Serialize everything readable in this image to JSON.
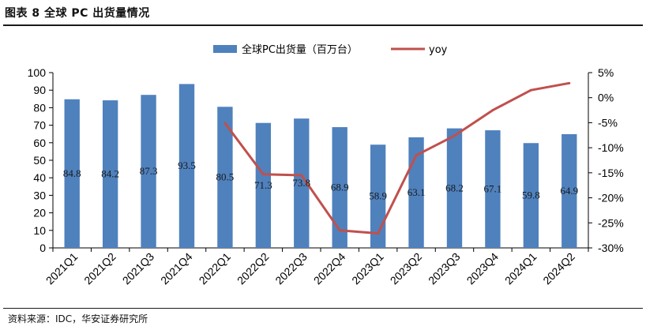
{
  "header": {
    "title": "图表 8 全球 PC 出货量情况"
  },
  "footer": {
    "source": "资料来源：IDC，华安证券研究所"
  },
  "colors": {
    "bar": "#4f81bd",
    "line": "#c0504d"
  },
  "chart_data": {
    "type": "bar",
    "categories": [
      "2021Q1",
      "2021Q2",
      "2021Q3",
      "2021Q4",
      "2022Q1",
      "2022Q2",
      "2022Q3",
      "2022Q4",
      "2023Q1",
      "2023Q2",
      "2023Q3",
      "2023Q4",
      "2024Q1",
      "2024Q2"
    ],
    "series": [
      {
        "name": "全球PC出货量（百万台）",
        "type": "bar",
        "axis": "left",
        "values": [
          84.8,
          84.2,
          87.3,
          93.5,
          80.5,
          71.3,
          73.8,
          68.9,
          58.9,
          63.1,
          68.2,
          67.1,
          59.8,
          64.9
        ],
        "labels": [
          "84.8",
          "84.2",
          "87.3",
          "93.5",
          "80.5",
          "71.3",
          "73.8",
          "68.9",
          "58.9",
          "63.1",
          "68.2",
          "67.1",
          "59.8",
          "64.9"
        ]
      },
      {
        "name": "yoy",
        "type": "line",
        "axis": "right",
        "values": [
          null,
          null,
          null,
          null,
          -5.1,
          -15.3,
          -15.5,
          -26.5,
          -27.1,
          -11.5,
          -7.6,
          -2.5,
          1.5,
          2.9
        ]
      }
    ],
    "ylim_left": [
      0,
      100
    ],
    "yticks_left": [
      "0",
      "10",
      "20",
      "30",
      "40",
      "50",
      "60",
      "70",
      "80",
      "90",
      "100"
    ],
    "ylim_right": [
      -30,
      5
    ],
    "yticks_right": [
      "-30%",
      "-25%",
      "-20%",
      "-15%",
      "-10%",
      "-5%",
      "0%",
      "5%"
    ],
    "legend_position": "top",
    "grid": false
  }
}
